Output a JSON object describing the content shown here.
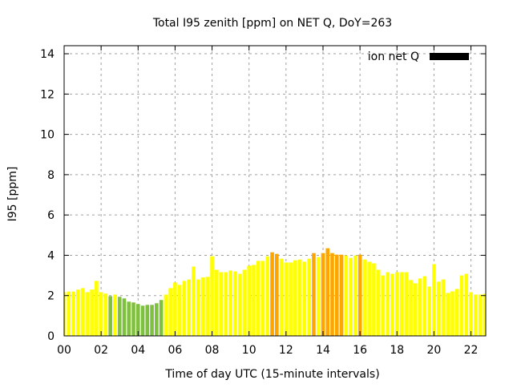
{
  "chart_data": {
    "type": "bar",
    "title": "Total I95 zenith [ppm] on NET Q, DoY=263",
    "xlabel": "Time of day UTC (15-minute intervals)",
    "ylabel": "I95 [ppm]",
    "ylim": [
      0,
      14.4
    ],
    "xlim_hours": [
      0,
      22.8
    ],
    "yticks": [
      0,
      2,
      4,
      6,
      8,
      10,
      12,
      14
    ],
    "xticks": [
      "00",
      "02",
      "04",
      "06",
      "08",
      "10",
      "12",
      "14",
      "16",
      "18",
      "20",
      "22"
    ],
    "xtick_hours": [
      0,
      2,
      4,
      6,
      8,
      10,
      12,
      14,
      16,
      18,
      20,
      22
    ],
    "grid": true,
    "legend": {
      "label": "ion net Q",
      "color": "#000000",
      "placement": "top-right"
    },
    "interval_hours": 0.25,
    "color_thresholds": {
      "low_below": 2.0,
      "high_above": 4.0
    },
    "colors": {
      "low": "#80c040",
      "mid": "#ffff00",
      "high": "#ffa500"
    },
    "values": [
      2.17,
      2.2,
      2.2,
      2.3,
      2.37,
      2.17,
      2.3,
      2.73,
      2.17,
      2.1,
      1.97,
      2.05,
      1.94,
      1.86,
      1.7,
      1.66,
      1.58,
      1.5,
      1.54,
      1.54,
      1.62,
      1.78,
      2.05,
      2.37,
      2.65,
      2.53,
      2.73,
      2.8,
      3.44,
      2.8,
      2.9,
      2.93,
      3.95,
      3.28,
      3.16,
      3.16,
      3.24,
      3.2,
      3.08,
      3.28,
      3.48,
      3.52,
      3.72,
      3.72,
      3.95,
      4.15,
      4.07,
      3.83,
      3.64,
      3.64,
      3.75,
      3.79,
      3.68,
      3.83,
      4.11,
      3.91,
      4.11,
      4.35,
      4.11,
      4.03,
      4.03,
      3.99,
      3.87,
      3.99,
      4.03,
      3.79,
      3.68,
      3.6,
      3.28,
      3.0,
      3.16,
      3.08,
      3.16,
      3.16,
      3.16,
      2.77,
      2.61,
      2.85,
      2.96,
      2.45,
      3.56,
      2.69,
      2.8,
      2.13,
      2.21,
      2.33,
      3.0,
      3.08,
      2.17,
      2.05,
      2.05,
      2.09
    ]
  }
}
